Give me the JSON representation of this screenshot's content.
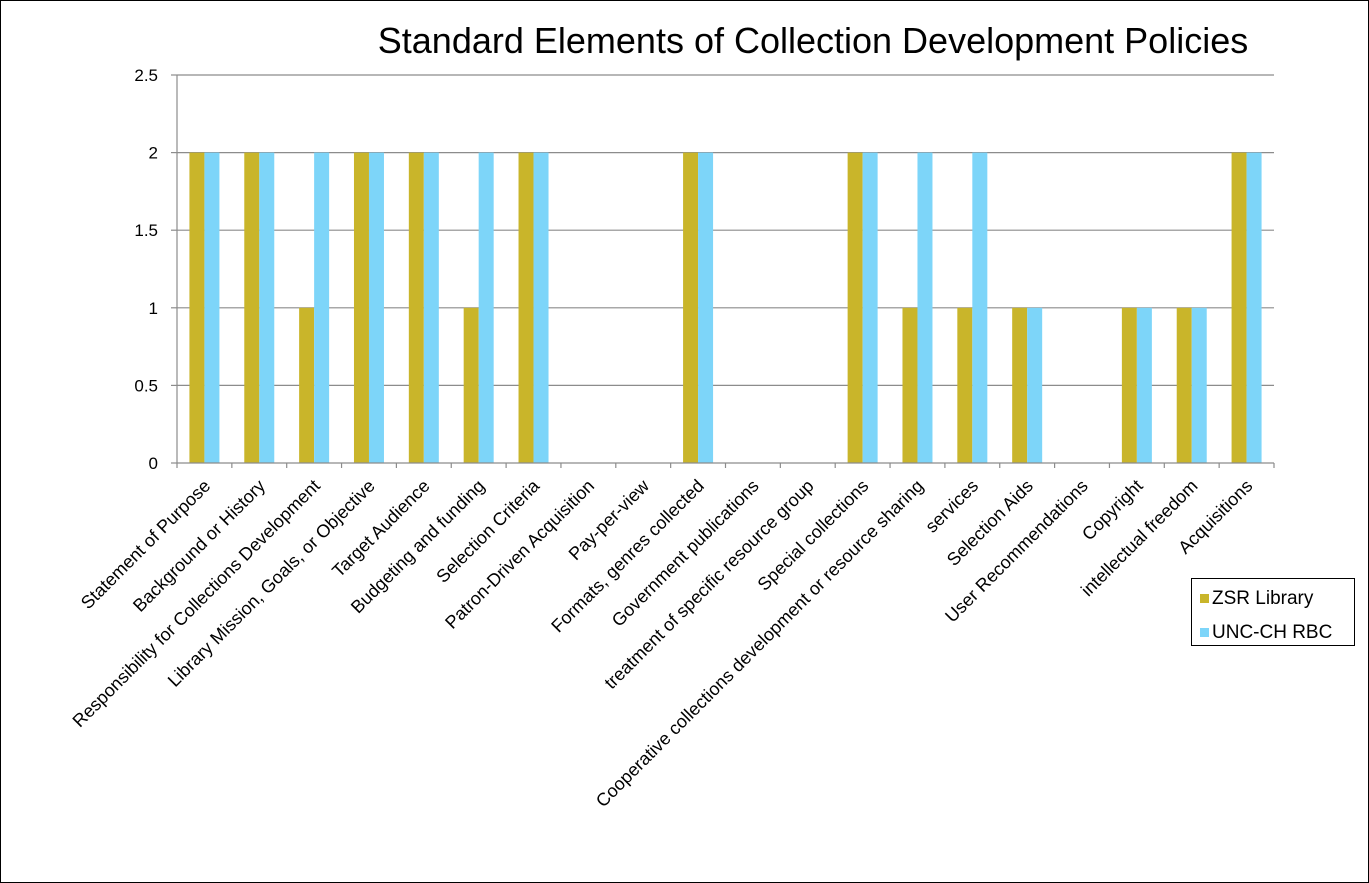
{
  "chart_data": {
    "type": "bar",
    "title": "Standard Elements of Collection Development Policies",
    "xlabel": "",
    "ylabel": "",
    "ylim": [
      0,
      2.5
    ],
    "yticks": [
      "0",
      "0.5",
      "1",
      "1.5",
      "2",
      "2.5"
    ],
    "grid": true,
    "legend_position": "right",
    "categories": [
      "Statement of Purpose",
      "Background or History",
      "Responsibility for Collections Development",
      "Library Mission, Goals, or Objective",
      "Target Audience",
      "Budgeting and funding",
      "Selection Criteria",
      "Patron-Driven Acquisition",
      "Pay-per-view",
      "Formats, genres collected",
      "Government publications",
      "treatment of specific resource group",
      "Special collections",
      "Cooperative collections development or resource sharing",
      "services",
      "Selection Aids",
      "User Recommendations",
      "Copyright",
      "intellectual freedom",
      "Acquisitions"
    ],
    "series": [
      {
        "name": "ZSR Library",
        "color": "#c9b52a",
        "values": [
          2,
          2,
          1,
          2,
          2,
          1,
          2,
          0,
          0,
          2,
          0,
          0,
          2,
          1,
          1,
          1,
          0,
          1,
          1,
          2
        ]
      },
      {
        "name": "UNC-CH RBC",
        "color": "#7dd5f9",
        "values": [
          2,
          2,
          2,
          2,
          2,
          2,
          2,
          0,
          0,
          2,
          0,
          0,
          2,
          2,
          2,
          1,
          0,
          1,
          1,
          2
        ]
      }
    ]
  }
}
